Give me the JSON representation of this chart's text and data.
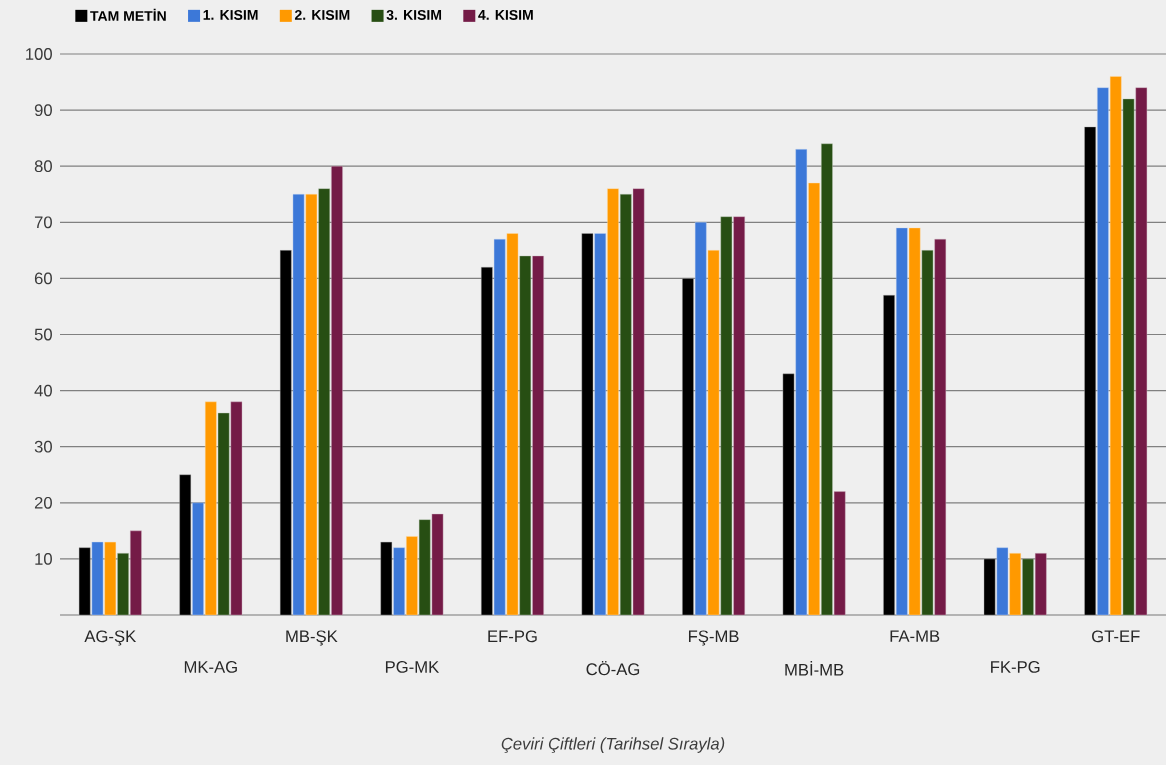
{
  "chart_data": {
    "type": "bar",
    "xlabel": "*Çeviri Çiftleri (Tarihsel Sırayla)*",
    "categories": [
      "AG-ŞK",
      "MK-AG",
      "MB-ŞK",
      "PG-MK",
      "EF-PG",
      "CÖ-AG",
      "FŞ-MB",
      "MBİ-MB",
      "FA-MB",
      "FK-PG",
      "GT-EF"
    ],
    "series": [
      {
        "name": "TAM METİN",
        "color": "#000000",
        "values": [
          12,
          25,
          65,
          13,
          62,
          68,
          60,
          43,
          57,
          10,
          87
        ]
      },
      {
        "name": "1. KISIM",
        "color": "#3c78d8",
        "values": [
          13,
          20,
          75,
          12,
          67,
          68,
          70,
          83,
          69,
          12,
          94
        ]
      },
      {
        "name": "2. KISIM",
        "color": "#ff9900",
        "values": [
          13,
          38,
          75,
          14,
          68,
          76,
          65,
          77,
          69,
          11,
          96
        ]
      },
      {
        "name": "3. KISIM",
        "color": "#274e13",
        "values": [
          11,
          36,
          76,
          17,
          64,
          75,
          71,
          84,
          65,
          10,
          92
        ]
      },
      {
        "name": "4. KISIM",
        "color": "#741b47",
        "values": [
          15,
          38,
          80,
          18,
          64,
          76,
          71,
          22,
          67,
          11,
          94
        ]
      }
    ],
    "ylim": [
      0,
      100
    ],
    "yticks": [
      10,
      20,
      30,
      40,
      50,
      60,
      70,
      80,
      90,
      100
    ],
    "grid": "y",
    "legend": "top left"
  }
}
